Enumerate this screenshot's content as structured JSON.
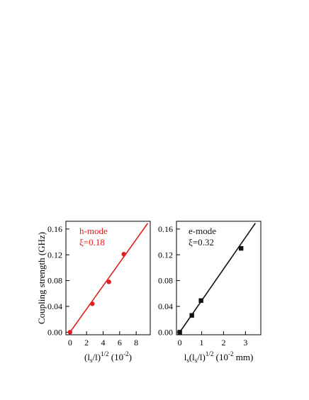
{
  "chart_data": [
    {
      "type": "scatter",
      "panel": "left",
      "color": "#e02020",
      "ylabel": "Coupling strength (GHz)",
      "xlabel_parts": {
        "main": "(l",
        "sub": "s",
        "mid": "/l)",
        "sup": "1/2",
        "unit_open": " (10",
        "unit_sup": "-2",
        "unit_close": ")"
      },
      "xlim": [
        -0.5,
        9.7
      ],
      "ylim": [
        -0.004,
        0.172
      ],
      "xticks": [
        0,
        2,
        4,
        6,
        8
      ],
      "yticks": [
        0.0,
        0.04,
        0.08,
        0.12,
        0.16
      ],
      "ytick_labels": [
        "0.00",
        "0.04",
        "0.08",
        "0.12",
        "0.16"
      ],
      "xtick_labels": [
        "0",
        "2",
        "4",
        "6",
        "8"
      ],
      "annotations": [
        "h-mode",
        "ξ=0.18"
      ],
      "series": [
        {
          "marker": "circle",
          "x": [
            0,
            2.7,
            4.7,
            6.5
          ],
          "y": [
            0.0,
            0.044,
            0.078,
            0.121
          ]
        }
      ],
      "fit_line": {
        "x": [
          0,
          9.4
        ],
        "y": [
          0.0,
          0.169
        ]
      }
    },
    {
      "type": "scatter",
      "panel": "right",
      "color": "#111111",
      "xlabel_parts": {
        "main": "l",
        "sub": "s",
        "mid": "(l",
        "sub2": "s",
        "mid2": "/l)",
        "sup": "1/2",
        "unit_open": " (10",
        "unit_sup": "-2",
        "unit_close": " mm)"
      },
      "xlim": [
        -0.15,
        3.7
      ],
      "ylim": [
        -0.004,
        0.172
      ],
      "xticks": [
        0,
        1,
        2,
        3
      ],
      "yticks": [
        0.0,
        0.04,
        0.08,
        0.12,
        0.16
      ],
      "ytick_labels": [
        "0.00",
        "0.04",
        "0.08",
        "0.12",
        "0.16"
      ],
      "xtick_labels": [
        "0",
        "1",
        "2",
        "3"
      ],
      "annotations": [
        "e-mode",
        "ξ=0.32"
      ],
      "series": [
        {
          "marker": "square",
          "x": [
            0,
            0.55,
            0.97,
            2.8
          ],
          "y": [
            0.0,
            0.026,
            0.049,
            0.13
          ]
        }
      ],
      "fit_line": {
        "x": [
          0,
          3.45
        ],
        "y": [
          0.0,
          0.169
        ]
      }
    }
  ]
}
